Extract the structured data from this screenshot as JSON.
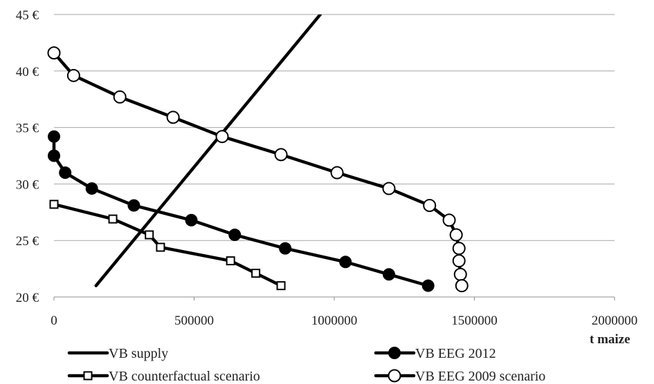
{
  "chart_data": {
    "type": "line",
    "title": "",
    "xlabel": "t  maize",
    "ylabel": "",
    "xlim": [
      0,
      2000000
    ],
    "ylim": [
      20,
      45
    ],
    "x_ticks": [
      "0",
      "500000",
      "1000000",
      "1500000",
      "2000000"
    ],
    "y_ticks": [
      "20 €",
      "25 €",
      "30 €",
      "35 €",
      "40 €",
      "45 €"
    ],
    "grid": "horizontal",
    "legend_position": "bottom",
    "colors": {
      "series": "#000000",
      "grid": "#a6a6a6"
    },
    "series": [
      {
        "name": "VB supply",
        "marker": "none",
        "x": [
          150000,
          950000
        ],
        "y": [
          21,
          45
        ]
      },
      {
        "name": "VB EEG 2012",
        "marker": "filled-circle",
        "x": [
          0,
          0,
          40000,
          135000,
          285000,
          490000,
          645000,
          825000,
          1040000,
          1195000,
          1335000
        ],
        "y": [
          34.2,
          32.5,
          31.0,
          29.6,
          28.1,
          26.8,
          25.5,
          24.3,
          23.1,
          22.0,
          21.0
        ]
      },
      {
        "name": "VB counterfactual scenario",
        "marker": "open-square",
        "x": [
          0,
          210000,
          340000,
          380000,
          630000,
          720000,
          810000
        ],
        "y": [
          28.2,
          26.9,
          25.5,
          24.4,
          23.2,
          22.1,
          21.0
        ]
      },
      {
        "name": "VB EEG 2009 scenario",
        "marker": "open-circle",
        "x": [
          0,
          70000,
          235000,
          425000,
          600000,
          810000,
          1010000,
          1195000,
          1340000,
          1410000,
          1435000,
          1445000,
          1445000,
          1450000,
          1455000
        ],
        "y": [
          41.6,
          39.6,
          37.7,
          35.9,
          34.2,
          32.6,
          31.0,
          29.6,
          28.1,
          26.8,
          25.5,
          24.3,
          23.2,
          22.0,
          21.0
        ]
      }
    ]
  }
}
